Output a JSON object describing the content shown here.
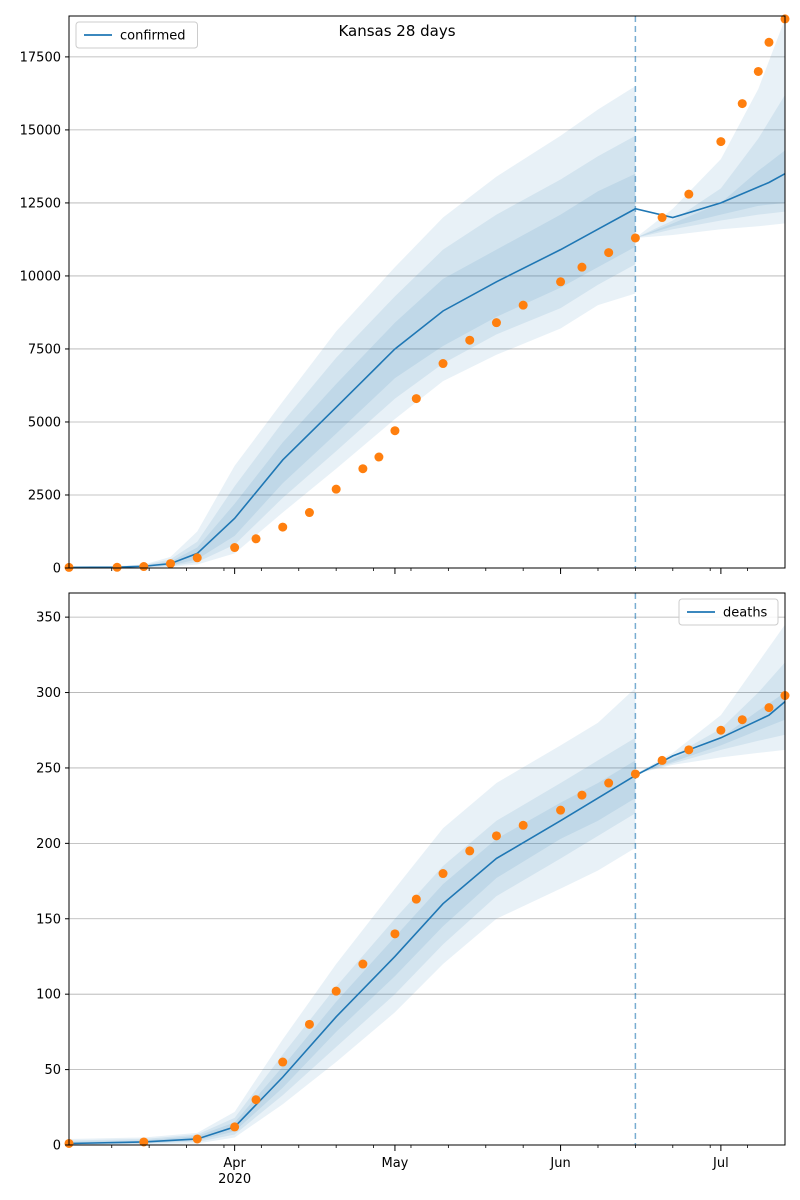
{
  "figure_title": "Kansas 28 days",
  "colors": {
    "model": "#1f77b4",
    "observed": "#ff7f0e",
    "grid": "#b0b0b0",
    "axis": "#000000"
  },
  "chart_data": [
    {
      "type": "line",
      "panel": "top",
      "legend_location": "top-left",
      "series": [
        {
          "name": "confirmed",
          "style": "line",
          "x": [
            "2020-03-01",
            "2020-03-10",
            "2020-03-15",
            "2020-03-20",
            "2020-03-25",
            "2020-04-01",
            "2020-04-10",
            "2020-04-20",
            "2020-05-01",
            "2020-05-10",
            "2020-05-20",
            "2020-06-01",
            "2020-06-08",
            "2020-06-15",
            "2020-06-22",
            "2020-07-01",
            "2020-07-10",
            "2020-07-13"
          ],
          "y": [
            20,
            30,
            60,
            150,
            500,
            1700,
            3700,
            5500,
            7500,
            8800,
            9800,
            10900,
            11600,
            12300,
            12000,
            12500,
            13200,
            13500
          ]
        },
        {
          "name": "",
          "style": "markers",
          "x": [
            "2020-03-01",
            "2020-03-10",
            "2020-03-15",
            "2020-03-20",
            "2020-03-25",
            "2020-04-01",
            "2020-04-05",
            "2020-04-10",
            "2020-04-15",
            "2020-04-20",
            "2020-04-25",
            "2020-04-28",
            "2020-05-01",
            "2020-05-05",
            "2020-05-10",
            "2020-05-15",
            "2020-05-20",
            "2020-05-25",
            "2020-06-01",
            "2020-06-05",
            "2020-06-10",
            "2020-06-15",
            "2020-06-20",
            "2020-06-25",
            "2020-07-01",
            "2020-07-05",
            "2020-07-08",
            "2020-07-10",
            "2020-07-13"
          ],
          "y": [
            20,
            25,
            50,
            150,
            350,
            700,
            1000,
            1400,
            1900,
            2700,
            3400,
            3800,
            4700,
            5800,
            7000,
            7800,
            8400,
            9000,
            9800,
            10300,
            10800,
            11300,
            12000,
            12800,
            14600,
            15900,
            17000,
            18000,
            18800
          ]
        }
      ],
      "bands": [
        {
          "level": 1,
          "upper": [
            60,
            70,
            120,
            380,
            1250,
            3500,
            5700,
            8100,
            10300,
            12000,
            13400,
            14800,
            15700,
            16500
          ]
        },
        {
          "level": 2,
          "upper": [
            40,
            50,
            100,
            300,
            900,
            2800,
            5000,
            7200,
            9300,
            10900,
            12100,
            13300,
            14100,
            14800
          ]
        },
        {
          "level": 3,
          "upper": [
            30,
            40,
            80,
            220,
            700,
            2200,
            4300,
            6300,
            8400,
            9900,
            10900,
            12100,
            12900,
            13500
          ]
        },
        {
          "level": 3,
          "lower": [
            15,
            20,
            40,
            80,
            300,
            1100,
            2900,
            4600,
            6500,
            7600,
            8600,
            9600,
            10300,
            11000
          ]
        },
        {
          "level": 2,
          "lower": [
            10,
            15,
            30,
            60,
            200,
            800,
            2400,
            4000,
            5800,
            7000,
            8000,
            8900,
            9700,
            10400
          ]
        },
        {
          "level": 1,
          "lower": [
            5,
            10,
            20,
            40,
            120,
            500,
            1900,
            3400,
            5100,
            6400,
            7300,
            8200,
            9000,
            9400
          ]
        }
      ],
      "band_x": [
        "2020-03-01",
        "2020-03-10",
        "2020-03-15",
        "2020-03-20",
        "2020-03-25",
        "2020-04-01",
        "2020-04-10",
        "2020-04-20",
        "2020-05-01",
        "2020-05-10",
        "2020-05-20",
        "2020-06-01",
        "2020-06-08",
        "2020-06-15"
      ],
      "forecast_band_x": [
        "2020-06-15",
        "2020-06-22",
        "2020-07-01",
        "2020-07-08",
        "2020-07-13"
      ],
      "forecast_bands": [
        {
          "level": 1,
          "upper": [
            11300,
            12300,
            14000,
            16400,
            18800
          ],
          "lower": [
            11300,
            11400,
            11600,
            11700,
            11800
          ]
        },
        {
          "level": 2,
          "upper": [
            11300,
            11900,
            13000,
            14700,
            16200
          ],
          "lower": [
            11300,
            11600,
            11900,
            12100,
            12200
          ]
        },
        {
          "level": 3,
          "upper": [
            11300,
            11800,
            12500,
            13600,
            14300
          ],
          "lower": [
            11300,
            11700,
            12100,
            12400,
            12500
          ]
        }
      ],
      "forecast_start": "2020-06-15",
      "ylim": [
        0,
        18900
      ],
      "yticks": [
        0,
        2500,
        5000,
        7500,
        10000,
        12500,
        15000,
        17500
      ],
      "ytick_labels": [
        "0",
        "2500",
        "5000",
        "7500",
        "10000",
        "12500",
        "15000",
        "17500"
      ],
      "xlim": [
        "2020-03-01",
        "2020-07-13"
      ],
      "grid_y": true
    },
    {
      "type": "line",
      "panel": "bottom",
      "legend_location": "top-right",
      "series": [
        {
          "name": "deaths",
          "style": "line",
          "x": [
            "2020-03-01",
            "2020-03-15",
            "2020-03-25",
            "2020-04-01",
            "2020-04-10",
            "2020-04-20",
            "2020-05-01",
            "2020-05-10",
            "2020-05-20",
            "2020-06-01",
            "2020-06-08",
            "2020-06-15",
            "2020-06-22",
            "2020-07-01",
            "2020-07-10",
            "2020-07-13"
          ],
          "y": [
            1,
            2,
            4,
            12,
            45,
            85,
            125,
            160,
            190,
            215,
            230,
            245,
            258,
            270,
            285,
            294
          ]
        },
        {
          "name": "",
          "style": "markers",
          "x": [
            "2020-03-01",
            "2020-03-15",
            "2020-03-25",
            "2020-04-01",
            "2020-04-05",
            "2020-04-10",
            "2020-04-15",
            "2020-04-20",
            "2020-04-25",
            "2020-05-01",
            "2020-05-05",
            "2020-05-10",
            "2020-05-15",
            "2020-05-20",
            "2020-05-25",
            "2020-06-01",
            "2020-06-05",
            "2020-06-10",
            "2020-06-15",
            "2020-06-20",
            "2020-06-25",
            "2020-07-01",
            "2020-07-05",
            "2020-07-10",
            "2020-07-13"
          ],
          "y": [
            1,
            2,
            4,
            12,
            30,
            55,
            80,
            102,
            120,
            140,
            163,
            180,
            195,
            205,
            212,
            222,
            232,
            240,
            246,
            255,
            262,
            275,
            282,
            290,
            298
          ]
        }
      ],
      "bands": [
        {
          "level": 1,
          "upper": [
            4,
            5,
            8,
            22,
            70,
            120,
            170,
            210,
            240,
            265,
            280,
            303
          ]
        },
        {
          "level": 2,
          "upper": [
            3,
            4,
            7,
            18,
            60,
            105,
            150,
            185,
            215,
            240,
            255,
            270
          ]
        },
        {
          "level": 3,
          "upper": [
            2,
            3,
            6,
            15,
            52,
            95,
            138,
            173,
            203,
            227,
            240,
            255
          ]
        },
        {
          "level": 3,
          "lower": [
            1,
            1,
            3,
            9,
            38,
            75,
            112,
            145,
            177,
            203,
            215,
            230
          ]
        },
        {
          "level": 2,
          "lower": [
            0,
            1,
            2,
            7,
            33,
            65,
            100,
            133,
            165,
            190,
            205,
            220
          ]
        },
        {
          "level": 1,
          "lower": [
            0,
            0,
            1,
            5,
            27,
            55,
            88,
            120,
            150,
            170,
            182,
            197
          ]
        }
      ],
      "band_x": [
        "2020-03-01",
        "2020-03-15",
        "2020-03-25",
        "2020-04-01",
        "2020-04-10",
        "2020-04-20",
        "2020-05-01",
        "2020-05-10",
        "2020-05-20",
        "2020-06-01",
        "2020-06-08",
        "2020-06-15"
      ],
      "forecast_band_x": [
        "2020-06-15",
        "2020-06-22",
        "2020-07-01",
        "2020-07-08",
        "2020-07-13"
      ],
      "forecast_bands": [
        {
          "level": 1,
          "upper": [
            246,
            260,
            285,
            320,
            345
          ],
          "lower": [
            246,
            252,
            257,
            260,
            262
          ]
        },
        {
          "level": 2,
          "upper": [
            246,
            258,
            276,
            300,
            320
          ],
          "lower": [
            246,
            253,
            262,
            268,
            272
          ]
        },
        {
          "level": 3,
          "upper": [
            246,
            256,
            270,
            288,
            300
          ],
          "lower": [
            246,
            254,
            265,
            275,
            282
          ]
        }
      ],
      "forecast_start": "2020-06-15",
      "ylim": [
        0,
        366
      ],
      "yticks": [
        0,
        50,
        100,
        150,
        200,
        250,
        300,
        350
      ],
      "ytick_labels": [
        "0",
        "50",
        "100",
        "150",
        "200",
        "250",
        "300",
        "350"
      ],
      "xlim": [
        "2020-03-01",
        "2020-07-13"
      ],
      "xticks": [
        "2020-04-01",
        "2020-05-01",
        "2020-06-01",
        "2020-07-01"
      ],
      "xtick_labels": [
        "Apr\n2020",
        "May",
        "Jun",
        "Jul"
      ],
      "grid_y": true
    }
  ]
}
